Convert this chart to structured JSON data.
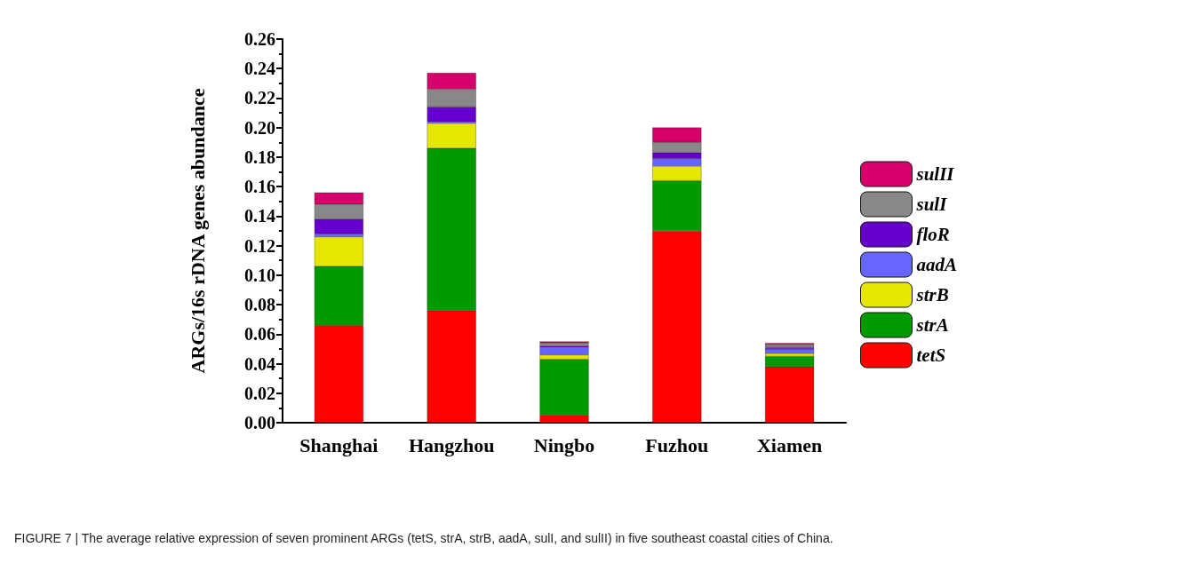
{
  "chart_data": {
    "type": "bar",
    "stacked": true,
    "ylabel": "ARGs/16s rDNA genes abundance",
    "categories": [
      "Shanghai",
      "Hangzhou",
      "Ningbo",
      "Fuzhou",
      "Xiamen"
    ],
    "series": [
      {
        "name": "tetS",
        "color": "#ff0000",
        "values": [
          0.066,
          0.076,
          0.005,
          0.13,
          0.038
        ]
      },
      {
        "name": "strA",
        "color": "#009900",
        "values": [
          0.04,
          0.11,
          0.038,
          0.034,
          0.007
        ]
      },
      {
        "name": "strB",
        "color": "#e6e600",
        "values": [
          0.02,
          0.017,
          0.003,
          0.01,
          0.002
        ]
      },
      {
        "name": "aadA",
        "color": "#6666ff",
        "values": [
          0.002,
          0.001,
          0.005,
          0.005,
          0.003
        ]
      },
      {
        "name": "floR",
        "color": "#6600cc",
        "values": [
          0.01,
          0.01,
          0.001,
          0.004,
          0.001
        ]
      },
      {
        "name": "sulI",
        "color": "#888888",
        "values": [
          0.01,
          0.012,
          0.002,
          0.007,
          0.002
        ]
      },
      {
        "name": "sulII",
        "color": "#d6006b",
        "values": [
          0.008,
          0.011,
          0.001,
          0.01,
          0.001
        ]
      }
    ],
    "ylim": [
      0,
      0.26
    ],
    "yticks": [
      {
        "value": 0,
        "label": "0.00"
      },
      0.02,
      0.04,
      0.06,
      0.08,
      {
        "value": 0.1,
        "label": "0.10"
      },
      0.12,
      0.14,
      0.16,
      0.18,
      {
        "value": 0.2,
        "label": "0.20"
      },
      0.22,
      0.24,
      0.26
    ],
    "grid": false,
    "legend": "right",
    "annotations": [
      "FIGURE 7 | The average relative expression of seven prominent ARGs (tetS, strA, strB, aadA, sulI, and sulII) in five southeast coastal cities of China."
    ]
  }
}
